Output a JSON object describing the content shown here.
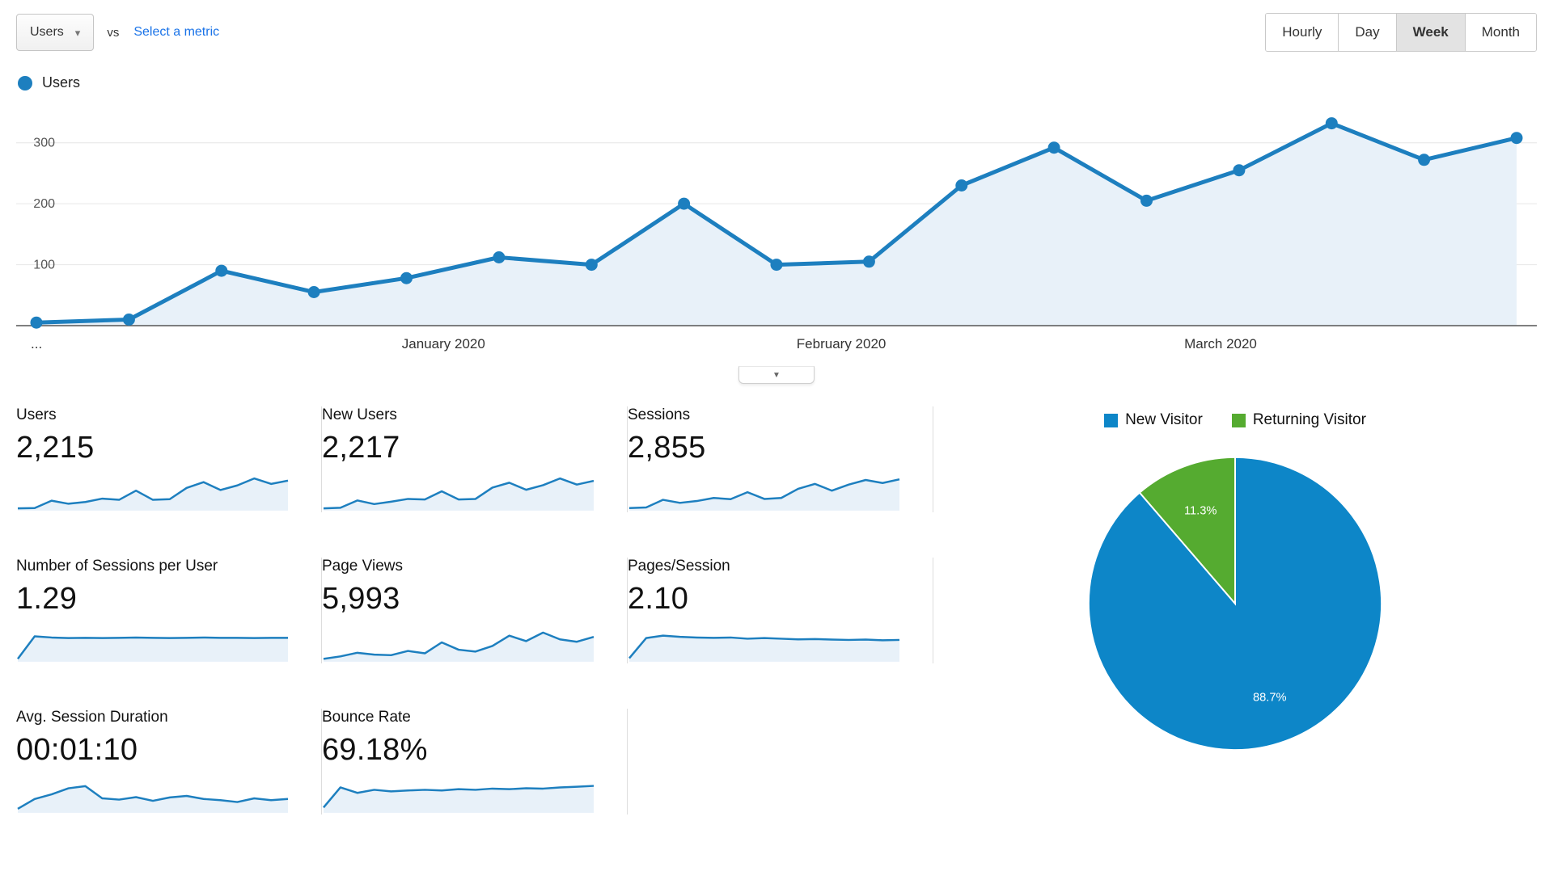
{
  "header": {
    "metric_selector": "Users",
    "vs_label": "vs",
    "select_metric_label": "Select a metric",
    "granularity": [
      "Hourly",
      "Day",
      "Week",
      "Month"
    ],
    "granularity_selected": "Week"
  },
  "icons": {
    "dropdown_arrow": "▾",
    "collapse_arrow": "▼"
  },
  "chart_data": [
    {
      "type": "line",
      "name": "users-over-time",
      "series_label": "Users",
      "values": [
        5,
        10,
        90,
        55,
        78,
        112,
        100,
        200,
        100,
        105,
        230,
        292,
        205,
        255,
        332,
        272,
        308
      ],
      "ylim": [
        0,
        350
      ],
      "yticks": [
        100,
        200,
        300
      ],
      "x_ticks": [
        {
          "label": "...",
          "pos": 0
        },
        {
          "label": "January 2020",
          "pos": 4.4
        },
        {
          "label": "February 2020",
          "pos": 8.7
        },
        {
          "label": "March 2020",
          "pos": 12.8
        }
      ],
      "grid": true,
      "legend_position": "top-left",
      "line_color": "#1d7fbf",
      "fill_color": "#e8f1f9"
    },
    {
      "type": "pie",
      "name": "visitor-type-pie",
      "labels": [
        "New Visitor",
        "Returning Visitor"
      ],
      "values": [
        88.7,
        11.3
      ],
      "display_labels": [
        "88.7%",
        "11.3%"
      ],
      "colors": [
        "#0d86c8",
        "#55ab30"
      ],
      "legend_position": "top"
    },
    {
      "type": "sparkline",
      "name": "users-spark",
      "label": "Users",
      "value": "2,215",
      "points": [
        2,
        3,
        27,
        17,
        23,
        34,
        30,
        60,
        30,
        32,
        69,
        88,
        62,
        77,
        100,
        82,
        93
      ]
    },
    {
      "type": "sparkline",
      "name": "new-users-spark",
      "label": "New Users",
      "value": "2,217",
      "points": [
        2,
        4,
        28,
        16,
        24,
        33,
        31,
        58,
        31,
        33,
        70,
        86,
        63,
        78,
        100,
        80,
        92
      ]
    },
    {
      "type": "sparkline",
      "name": "sessions-spark",
      "label": "Sessions",
      "value": "2,855",
      "points": [
        3,
        5,
        30,
        20,
        26,
        36,
        32,
        55,
        33,
        36,
        66,
        82,
        60,
        80,
        95,
        85,
        97
      ]
    },
    {
      "type": "sparkline",
      "name": "sessions-per-user-spark",
      "label": "Number of Sessions per User",
      "value": "1.29",
      "points": [
        4,
        78,
        74,
        72,
        73,
        72,
        73,
        74,
        73,
        72,
        73,
        74,
        73,
        73,
        72,
        73,
        73
      ]
    },
    {
      "type": "sparkline",
      "name": "page-views-spark",
      "label": "Page Views",
      "value": "5,993",
      "points": [
        4,
        12,
        24,
        18,
        16,
        30,
        22,
        58,
        34,
        28,
        46,
        80,
        62,
        90,
        68,
        60,
        76
      ]
    },
    {
      "type": "sparkline",
      "name": "pages-per-session-spark",
      "label": "Pages/Session",
      "value": "2.10",
      "points": [
        6,
        72,
        80,
        76,
        74,
        73,
        74,
        70,
        72,
        70,
        68,
        69,
        67,
        66,
        67,
        65,
        66
      ]
    },
    {
      "type": "sparkline",
      "name": "avg-session-duration-spark",
      "label": "Avg. Session Duration",
      "value": "00:01:10",
      "points": [
        8,
        40,
        55,
        75,
        82,
        42,
        38,
        46,
        34,
        45,
        50,
        40,
        36,
        30,
        42,
        36,
        40
      ]
    },
    {
      "type": "sparkline",
      "name": "bounce-rate-spark",
      "label": "Bounce Rate",
      "value": "69.18%",
      "points": [
        12,
        78,
        60,
        70,
        65,
        68,
        70,
        68,
        72,
        70,
        74,
        72,
        75,
        74,
        78,
        80,
        83
      ]
    }
  ]
}
